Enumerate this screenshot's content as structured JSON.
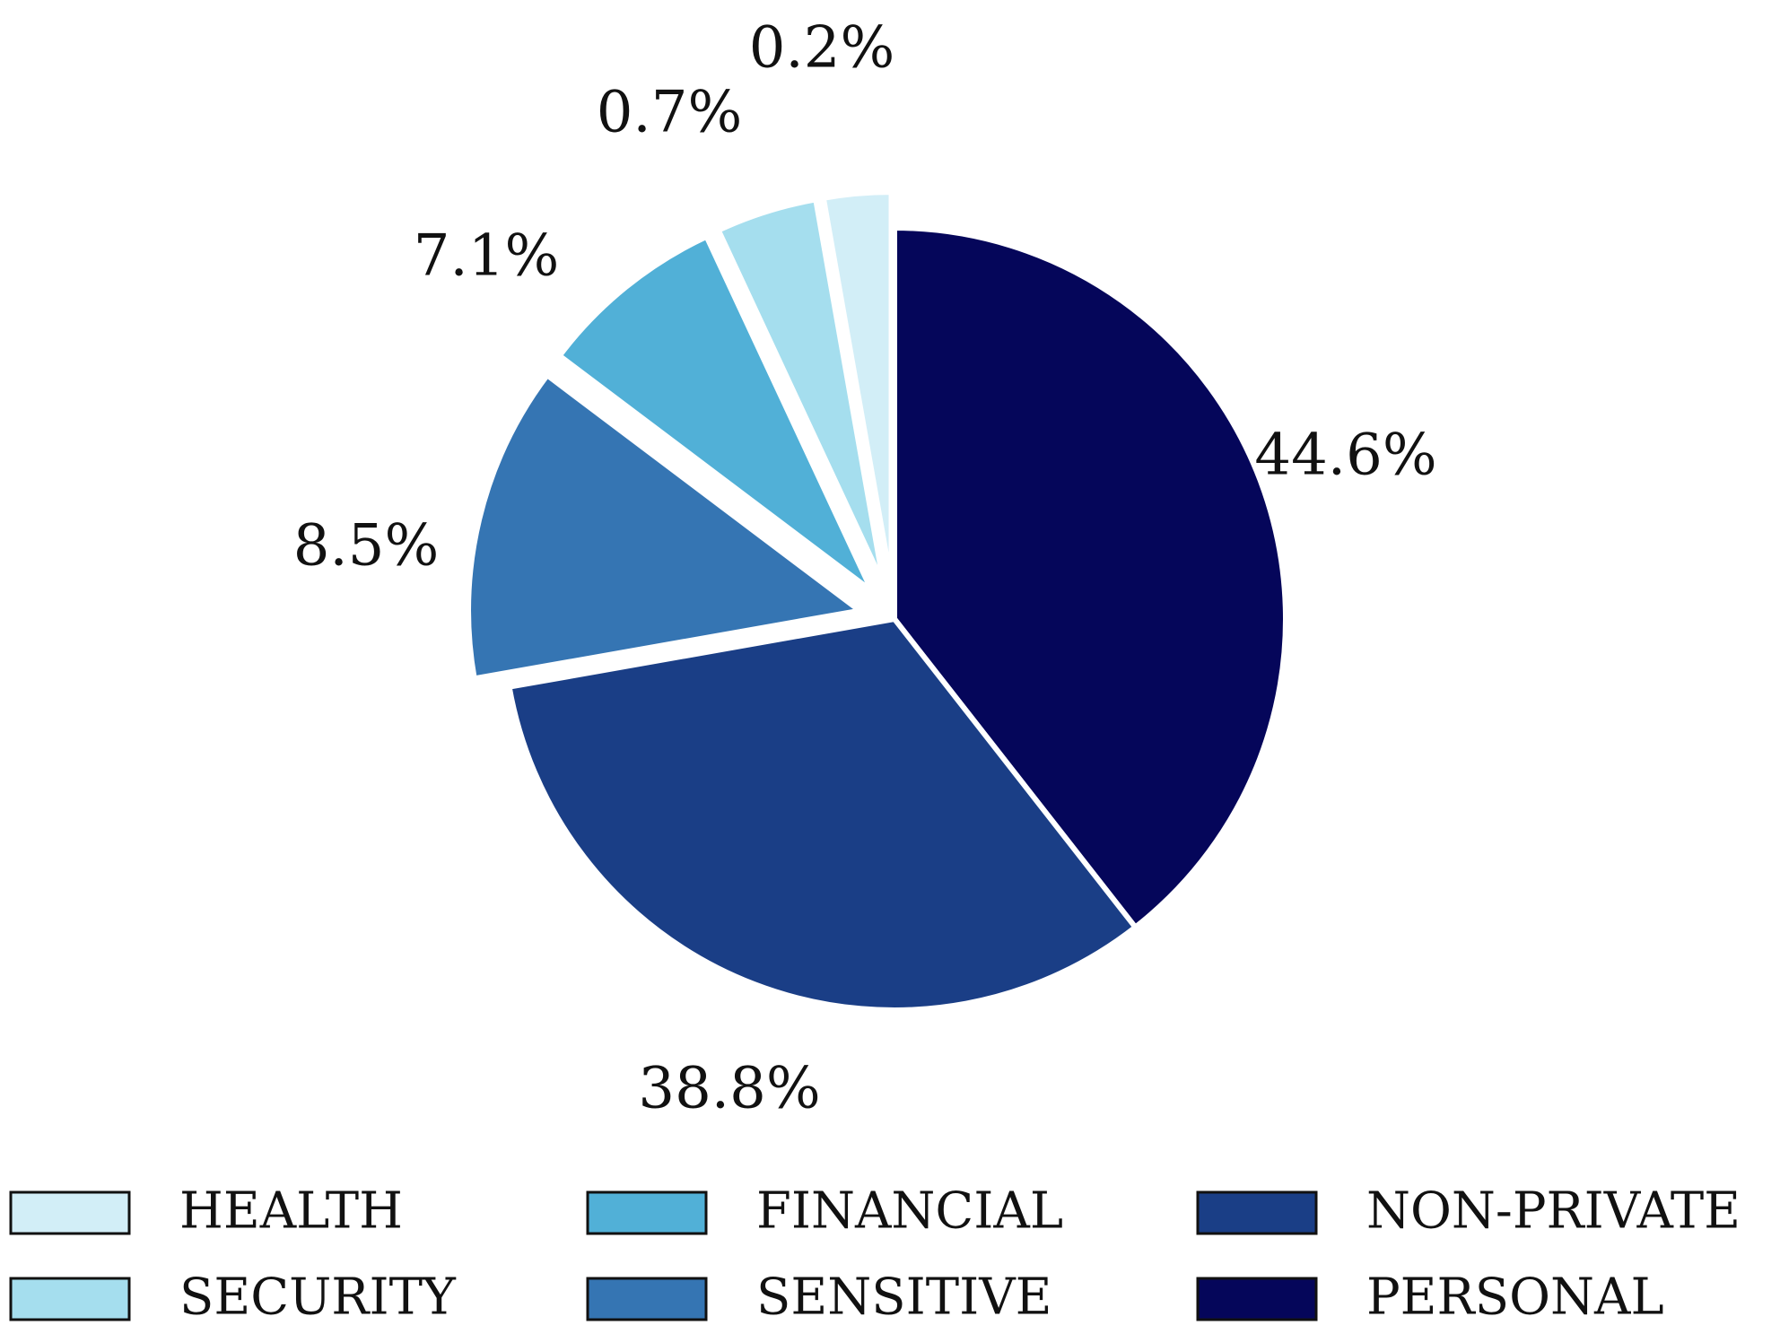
{
  "chart_data": {
    "type": "pie",
    "slices": [
      {
        "label": "PERSONAL",
        "value": 44.6,
        "label_text": "44.6%",
        "color": "#05065A",
        "exploded": false
      },
      {
        "label": "NON-PRIVATE",
        "value": 38.8,
        "label_text": "38.8%",
        "color": "#1A3E86",
        "exploded": false
      },
      {
        "label": "SENSITIVE",
        "value": 8.5,
        "label_text": "8.5%",
        "color": "#3575B3",
        "exploded": true
      },
      {
        "label": "FINANCIAL",
        "value": 7.1,
        "label_text": "7.1%",
        "color": "#51B0D7",
        "exploded": true
      },
      {
        "label": "SECURITY",
        "value": 0.7,
        "label_text": "0.7%",
        "color": "#A5DEEE",
        "exploded": true
      },
      {
        "label": "HEALTH",
        "value": 0.2,
        "label_text": "0.2%",
        "color": "#D2EEF7",
        "exploded": true
      }
    ],
    "legend": {
      "placement": "bottom",
      "entries": [
        {
          "label": "HEALTH",
          "color": "#D2EEF7"
        },
        {
          "label": "SECURITY",
          "color": "#A5DEEE"
        },
        {
          "label": "FINANCIAL",
          "color": "#51B0D7"
        },
        {
          "label": "SENSITIVE",
          "color": "#3575B3"
        },
        {
          "label": "NON-PRIVATE",
          "color": "#1A3E86"
        },
        {
          "label": "PERSONAL",
          "color": "#05065A"
        }
      ]
    },
    "title": ""
  }
}
